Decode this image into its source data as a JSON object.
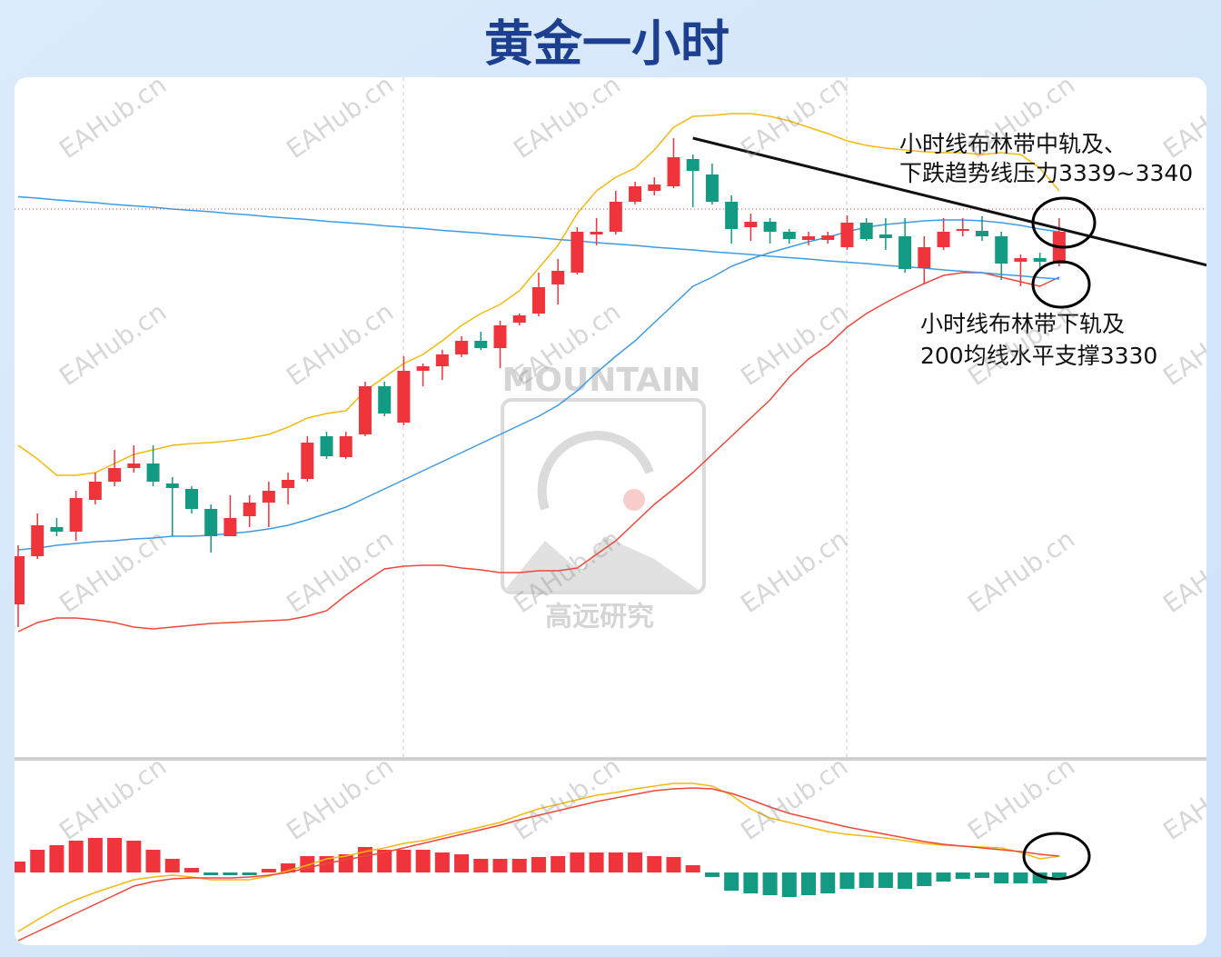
{
  "chart_data": {
    "type": "candlestick",
    "title": "黄金一小时",
    "ylim": [
      3224,
      3374
    ],
    "up_color": "#f0343c",
    "down_color": "#129a82",
    "open": [
      3258,
      3268.6,
      3275,
      3274,
      3281,
      3285,
      3288,
      3289,
      3284.6,
      3283.4,
      3279,
      3273,
      3277.4,
      3280.4,
      3283.6,
      3285.6,
      3295,
      3290.4,
      3295.4,
      3306,
      3298,
      3309.4,
      3310.4,
      3313,
      3316,
      3314.4,
      3320,
      3322,
      3328.4,
      3331,
      3339.4,
      3340,
      3346.6,
      3349,
      3350,
      3356,
      3352.6,
      3346.6,
      3341,
      3342.2,
      3340,
      3338.2,
      3338.2,
      3336.6,
      3342,
      3339.4,
      3339,
      3332,
      3336.6,
      3340.2,
      3340.2,
      3339,
      3333.4,
      3334.2,
      3333
    ],
    "high": [
      3271,
      3278,
      3277,
      3283,
      3287,
      3292,
      3293,
      3293,
      3286,
      3284,
      3280,
      3282,
      3282,
      3285,
      3287,
      3295,
      3296,
      3296,
      3307,
      3307,
      3312.6,
      3311,
      3314,
      3317,
      3318,
      3320.4,
      3322,
      3331,
      3334,
      3341,
      3343,
      3349,
      3351,
      3352,
      3360.6,
      3357,
      3355,
      3348,
      3344,
      3343,
      3340.6,
      3340,
      3340,
      3343.6,
      3343,
      3343,
      3343,
      3339,
      3343,
      3343,
      3343.4,
      3340,
      3335,
      3335.4,
      3343
    ],
    "low": [
      3253,
      3268,
      3273,
      3272,
      3280,
      3284,
      3287,
      3284,
      3273,
      3278,
      3269.4,
      3273,
      3275,
      3275,
      3280,
      3285,
      3290,
      3290,
      3295,
      3299.4,
      3297.4,
      3306,
      3307.4,
      3312.4,
      3314,
      3310,
      3319.4,
      3321.4,
      3324,
      3330.6,
      3337,
      3339.4,
      3346,
      3348,
      3349.6,
      3345.4,
      3346,
      3337.4,
      3338,
      3337.4,
      3337.4,
      3337,
      3337.4,
      3336,
      3338,
      3336,
      3331,
      3328.4,
      3336,
      3339,
      3338,
      3329.4,
      3328,
      3332,
      3332.4
    ],
    "close": [
      3268.6,
      3275.4,
      3274,
      3281.4,
      3285,
      3288,
      3289,
      3285,
      3283.6,
      3279,
      3273,
      3277,
      3280.4,
      3283,
      3285.4,
      3293.6,
      3290.6,
      3295,
      3306,
      3300,
      3309.4,
      3310.4,
      3313,
      3316,
      3314.4,
      3319.4,
      3321.6,
      3327.8,
      3331.4,
      3340,
      3340,
      3346.6,
      3350,
      3350.4,
      3356.4,
      3353.4,
      3346.6,
      3340.6,
      3342.2,
      3340,
      3338.4,
      3339,
      3339.2,
      3342,
      3338.4,
      3338.6,
      3331.8,
      3336.6,
      3340,
      3340.6,
      3339,
      3333,
      3334.2,
      3333.4,
      3340
    ],
    "overlays": [
      {
        "color": "#f5b90f",
        "values": [
          3293,
          3290,
          3286.4,
          3286.4,
          3287,
          3289,
          3291,
          3292,
          3293,
          3293.4,
          3293.6,
          3294,
          3294.6,
          3295.4,
          3297,
          3299,
          3300,
          3300.6,
          3305,
          3308,
          3311,
          3313,
          3316,
          3319.4,
          3322,
          3324,
          3327,
          3332,
          3337,
          3344,
          3349,
          3352,
          3354,
          3358,
          3363,
          3365.4,
          3365.6,
          3366,
          3366,
          3365.4,
          3364.4,
          3363,
          3361.6,
          3360,
          3359,
          3358.4,
          3358,
          3357.6,
          3357.4,
          3357.4,
          3357,
          3357.4,
          3357,
          3354,
          3349
        ]
      },
      {
        "color": "#3f9be3",
        "values": [
          3270,
          3270.4,
          3271,
          3271.4,
          3271.8,
          3272,
          3272.4,
          3272.6,
          3273,
          3273,
          3273.2,
          3273.6,
          3274,
          3274.6,
          3275.4,
          3276.6,
          3278,
          3279.4,
          3281.4,
          3283.4,
          3285.4,
          3287.4,
          3289.4,
          3291.4,
          3293.4,
          3295.4,
          3297.4,
          3299.4,
          3301.8,
          3305,
          3309,
          3312.6,
          3316,
          3320,
          3324,
          3328,
          3330,
          3332.4,
          3334,
          3335.4,
          3336.6,
          3337.8,
          3338.8,
          3340,
          3341,
          3341.6,
          3342,
          3342.4,
          3342.6,
          3342.6,
          3342.4,
          3342,
          3341.4,
          3340.6,
          3340
        ]
      },
      {
        "color": "#f0473a",
        "values": [
          3252,
          3254,
          3255,
          3255,
          3254.6,
          3254,
          3253,
          3252.6,
          3253,
          3253.4,
          3253.8,
          3254,
          3254.2,
          3254.4,
          3254.6,
          3255.4,
          3256.6,
          3260,
          3263,
          3265.8,
          3266.4,
          3266.6,
          3266.6,
          3266,
          3265.6,
          3265,
          3265,
          3265.4,
          3265.4,
          3266,
          3269,
          3272,
          3276,
          3280,
          3283.4,
          3287,
          3291,
          3295,
          3299,
          3303,
          3308,
          3312,
          3315,
          3319,
          3322,
          3324.4,
          3326.6,
          3328.6,
          3330.4,
          3331,
          3331,
          3330,
          3329,
          3328,
          3330
        ]
      },
      {
        "color": "#3f9be3",
        "values": [
          3347.7,
          3347.4,
          3347.0,
          3346.7,
          3346.4,
          3346.0,
          3345.7,
          3345.4,
          3345.0,
          3344.7,
          3344.4,
          3344.0,
          3343.7,
          3343.3,
          3343.0,
          3342.7,
          3342.3,
          3342.0,
          3341.7,
          3341.3,
          3341.0,
          3340.7,
          3340.3,
          3340.0,
          3339.7,
          3339.3,
          3339.0,
          3338.7,
          3338.3,
          3338.0,
          3337.6,
          3337.3,
          3337.0,
          3336.6,
          3336.3,
          3336.0,
          3335.6,
          3335.3,
          3335.0,
          3334.6,
          3334.3,
          3334.0,
          3333.6,
          3333.3,
          3333.0,
          3332.6,
          3332.3,
          3332.0,
          3331.6,
          3331.3,
          3331.0,
          3330.6,
          3330.3,
          3329.9,
          3329.6
        ]
      }
    ],
    "reference_line": 3345,
    "trend_line": {
      "color": "#111111",
      "x": [
        35,
        61.7
      ],
      "y": [
        3360.6,
        3332.6
      ]
    },
    "annotations": [
      {
        "lines": [
          "小时线布林带中轨及、",
          "下跌趋势线压力3339~3340"
        ]
      },
      {
        "lines": [
          "小时线布林带下轨及",
          "200均线水平支撑3330"
        ]
      }
    ],
    "indicator": {
      "type": "bar",
      "ylim": [
        -8,
        12.2
      ],
      "values": [
        1.2,
        2.5,
        3.0,
        3.5,
        3.8,
        3.8,
        3.5,
        2.5,
        1.5,
        0.5,
        -0.3,
        -0.3,
        -0.3,
        0.4,
        1.0,
        1.8,
        1.8,
        2.0,
        2.8,
        2.5,
        2.5,
        2.5,
        2.2,
        2.0,
        1.5,
        1.5,
        1.5,
        1.7,
        1.8,
        2.2,
        2.2,
        2.2,
        2.2,
        1.8,
        1.7,
        0.8,
        -0.5,
        -2.0,
        -2.3,
        -2.5,
        -2.7,
        -2.5,
        -2.3,
        -1.8,
        -1.7,
        -1.7,
        -1.8,
        -1.5,
        -1.0,
        -0.7,
        -0.6,
        -1.2,
        -1.2,
        -1.2,
        -0.5
      ],
      "lines": [
        {
          "color": "#f5b90f",
          "values": [
            -6.5,
            -5.2,
            -4.0,
            -3.0,
            -2.2,
            -1.5,
            -0.8,
            -0.5,
            -0.3,
            -0.5,
            -0.8,
            -0.8,
            -0.8,
            -0.4,
            0.2,
            0.8,
            1.5,
            1.8,
            2.3,
            2.7,
            3.2,
            3.5,
            4.0,
            4.5,
            5.0,
            5.5,
            6.3,
            7.0,
            7.5,
            8.0,
            8.5,
            8.8,
            9.2,
            9.5,
            9.8,
            9.8,
            9.5,
            8.5,
            7.0,
            6.0,
            5.5,
            5.0,
            4.5,
            4.2,
            4.0,
            3.8,
            3.5,
            3.2,
            3.0,
            2.9,
            2.8,
            2.7,
            2.2,
            1.5,
            1.8
          ]
        },
        {
          "color": "#f0473a",
          "values": [
            -7.5,
            -6.5,
            -5.5,
            -4.5,
            -3.5,
            -2.5,
            -1.5,
            -1.0,
            -0.7,
            -0.6,
            -0.6,
            -0.6,
            -0.5,
            -0.3,
            0.0,
            0.5,
            1.0,
            1.4,
            1.8,
            2.2,
            2.7,
            3.2,
            3.7,
            4.2,
            4.7,
            5.2,
            5.8,
            6.3,
            6.8,
            7.3,
            7.8,
            8.2,
            8.6,
            9.0,
            9.2,
            9.3,
            9.2,
            8.7,
            8.0,
            7.2,
            6.5,
            6.0,
            5.5,
            5.0,
            4.6,
            4.2,
            3.8,
            3.4,
            3.1,
            2.9,
            2.7,
            2.5,
            2.3,
            2.0,
            1.8
          ]
        }
      ]
    }
  },
  "watermark": "EAHub.cn",
  "logo": {
    "text": "MOUNTAIN",
    "subtitle": "高远研究"
  }
}
